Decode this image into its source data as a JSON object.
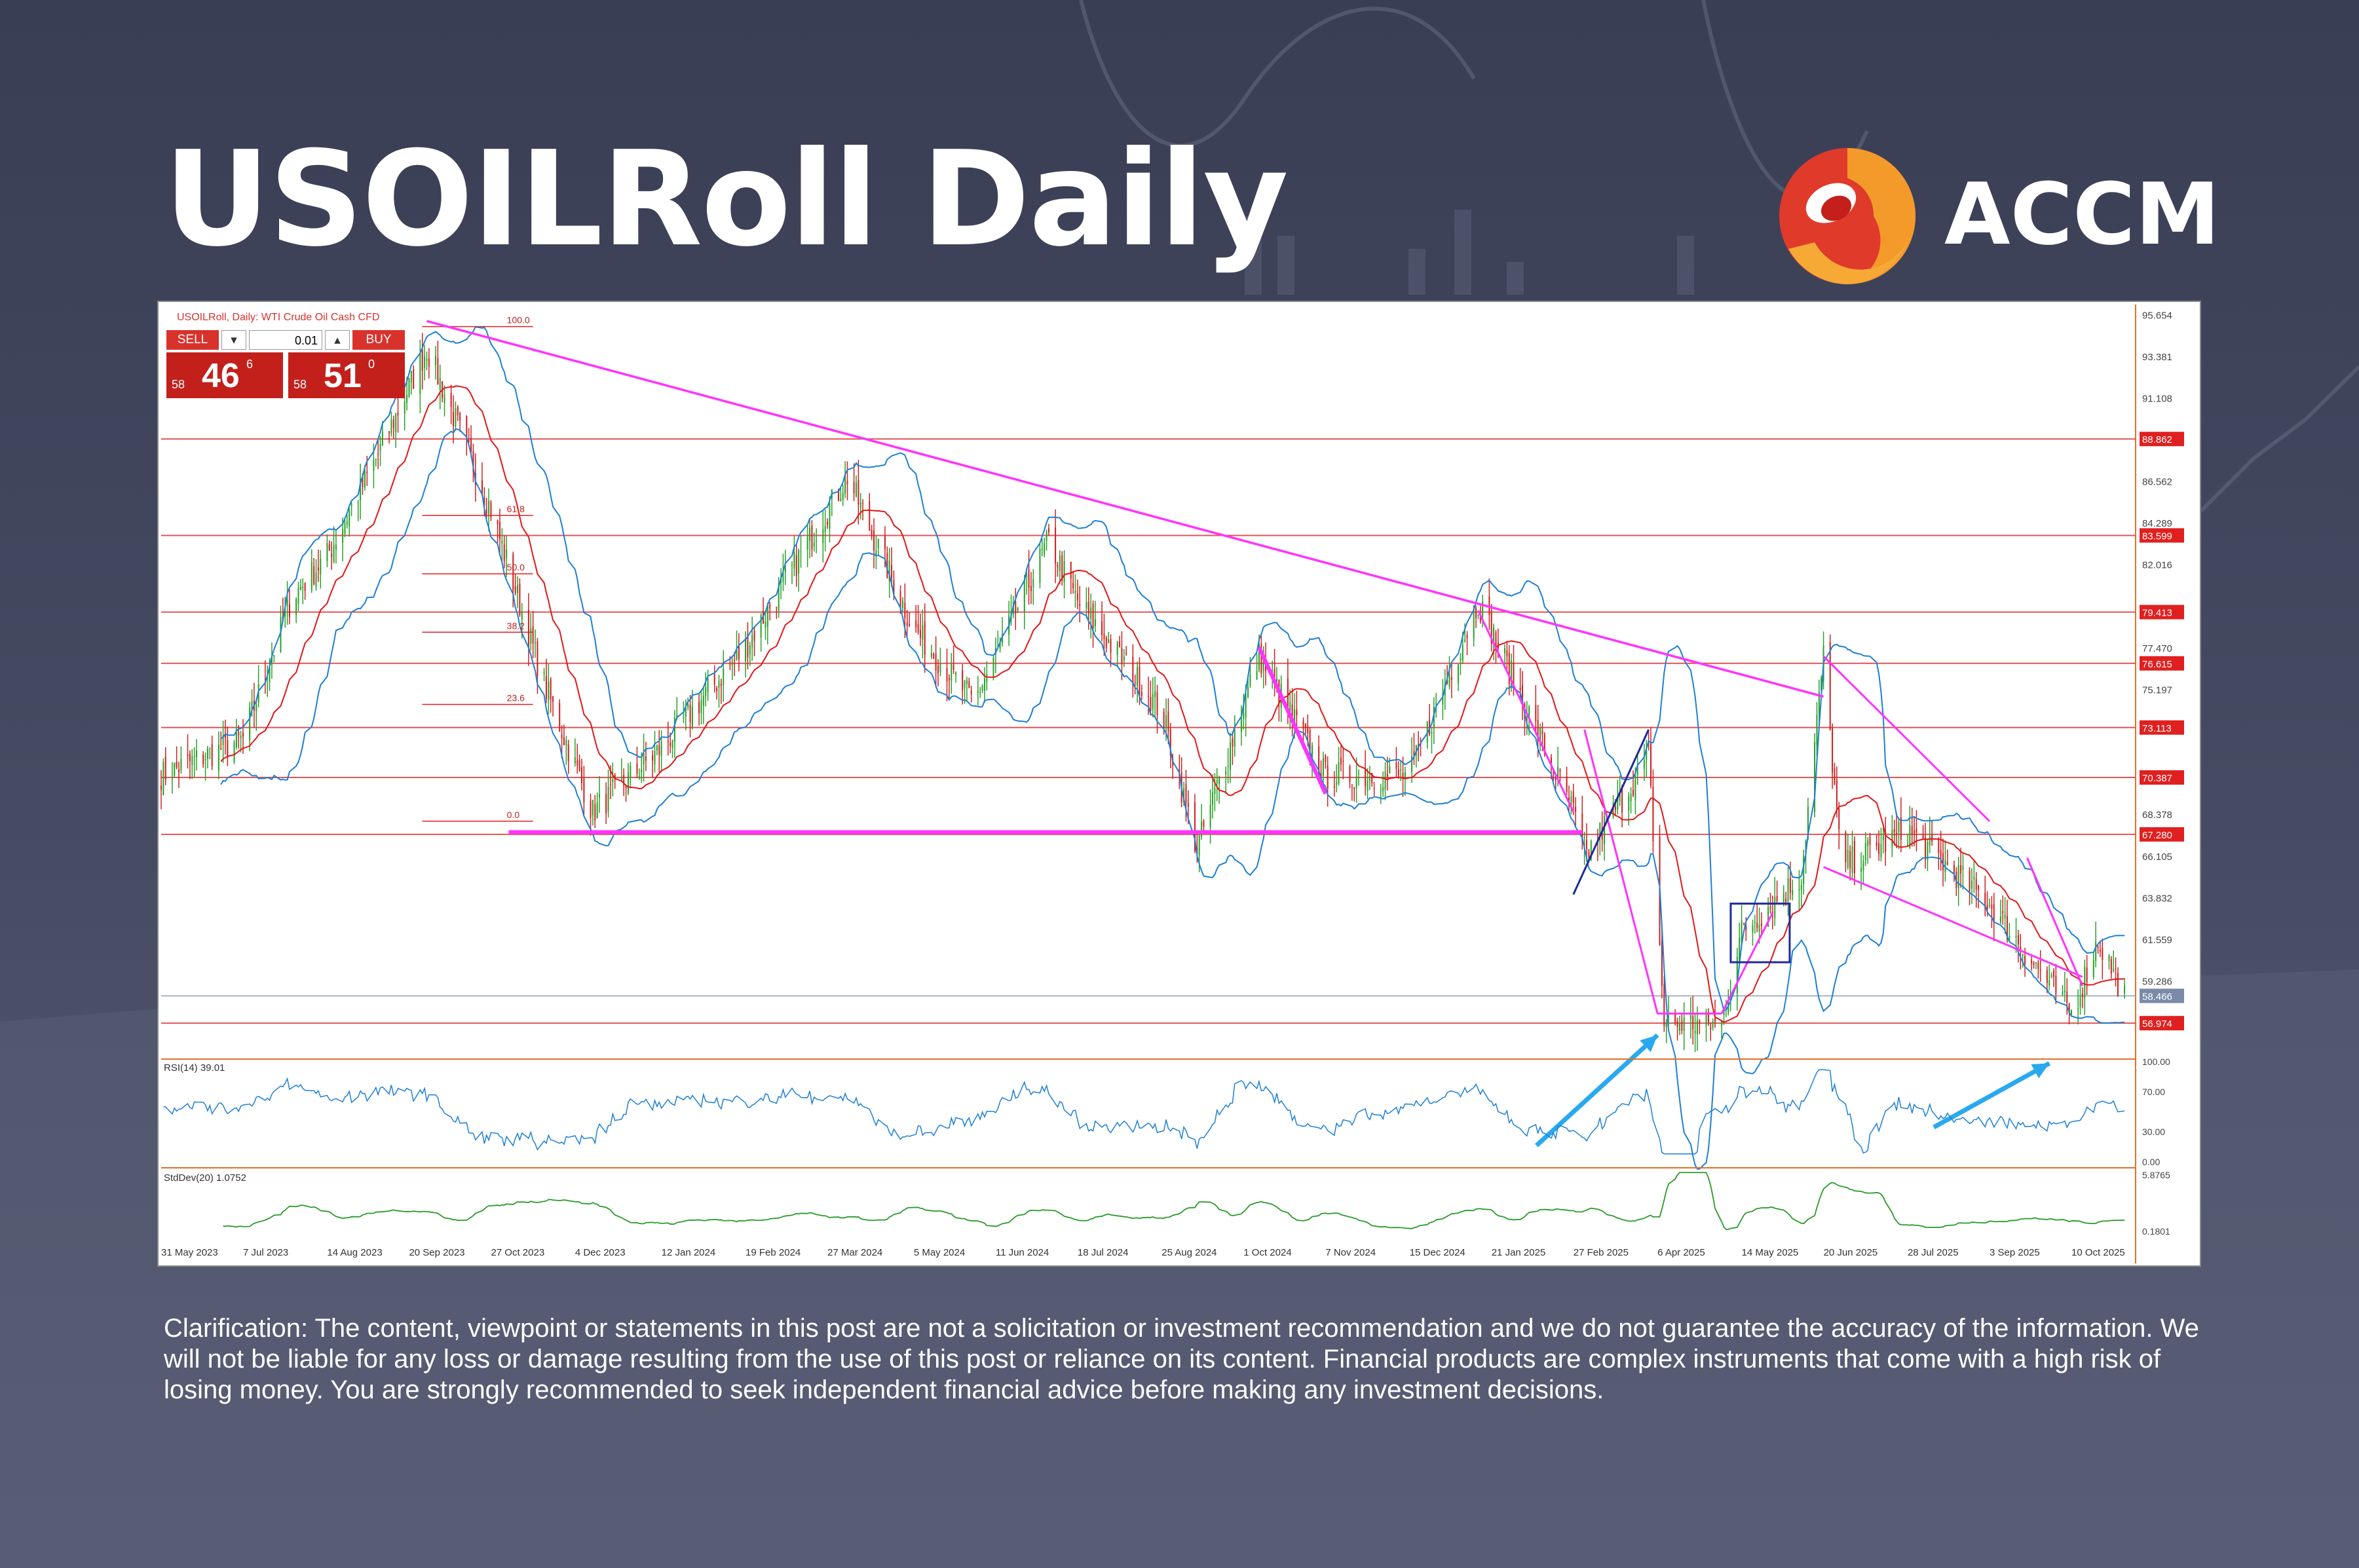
{
  "page": {
    "title": "USOILRoll Daily",
    "brand": "ACCM",
    "disclaimer": "Clarification: The content, viewpoint or statements in this post are not a solicitation or investment recommendation and we do not guarantee the accuracy of the information. We will not be liable for any loss or damage resulting from the use of this post or reliance on its content. Financial products are complex instruments that come with a high risk of losing money. You are strongly recommended to seek independent financial advice before making any investment decisions.",
    "colors": {
      "background": "#3e4259",
      "logo_red": "#e03a2a",
      "logo_orange": "#f39a2b",
      "candle_up": "#2aa12a",
      "candle_down": "#cc2222",
      "trendline": "#ff33ff",
      "bollinger": "#1e7fd6",
      "moving_average": "#e01818",
      "annotation_arrow": "#29a9ef"
    }
  },
  "trade_panel": {
    "sell_label": "SELL",
    "buy_label": "BUY",
    "quantity": "0.01",
    "sell_prefix": "58",
    "sell_main": "46",
    "sell_sup": "6",
    "buy_prefix": "58",
    "buy_main": "51",
    "buy_sup": "0"
  },
  "chart_data": {
    "type": "candlestick",
    "symbol_header": "USOILRoll, Daily: WTI Crude Oil Cash CFD",
    "y_range": [
      55.3,
      96.2
    ],
    "x_labels": [
      "31 May 2023",
      "7 Jul 2023",
      "14 Aug 2023",
      "20 Sep 2023",
      "27 Oct 2023",
      "4 Dec 2023",
      "12 Jan 2024",
      "19 Feb 2024",
      "27 Mar 2024",
      "5 May 2024",
      "11 Jun 2024",
      "18 Jul 2024",
      "25 Aug 2024",
      "1 Oct 2024",
      "7 Nov 2024",
      "15 Dec 2024",
      "21 Jan 2025",
      "27 Feb 2025",
      "6 Apr 2025",
      "14 May 2025",
      "20 Jun 2025",
      "28 Jul 2025",
      "3 Sep 2025",
      "10 Oct 2025"
    ],
    "price_ticks": [
      "95.654",
      "93.381",
      "91.108",
      "88.862",
      "86.562",
      "84.289",
      "83.599",
      "82.016",
      "79.413",
      "77.470",
      "76.615",
      "75.197",
      "73.113",
      "70.387",
      "68.378",
      "67.280",
      "66.105",
      "63.832",
      "61.559",
      "59.286",
      "58.466",
      "56.974"
    ],
    "highlighted_levels": [
      "88.862",
      "83.599",
      "79.413",
      "76.615",
      "73.113",
      "70.387",
      "67.280",
      "56.974"
    ],
    "current_price": "58.466",
    "fibonacci_labels": [
      "100.0",
      "61.8",
      "50.0",
      "38.2",
      "23.6",
      "0.0"
    ],
    "close_path": [
      {
        "d": "31 May 2023",
        "c": 70.5
      },
      {
        "d": "7 Jul 2023",
        "c": 72.5
      },
      {
        "d": "29 Jul 2023",
        "c": 80.2
      },
      {
        "d": "14 Aug 2023",
        "c": 82.5
      },
      {
        "d": "4 Sep 2023",
        "c": 87.5
      },
      {
        "d": "28 Sep 2023",
        "c": 93.8
      },
      {
        "d": "27 Oct 2023",
        "c": 85.0
      },
      {
        "d": "20 Nov 2023",
        "c": 75.5
      },
      {
        "d": "12 Dec 2023",
        "c": 68.5
      },
      {
        "d": "12 Jan 2024",
        "c": 72.0
      },
      {
        "d": "19 Feb 2024",
        "c": 77.5
      },
      {
        "d": "5 Apr 2024",
        "c": 86.8
      },
      {
        "d": "5 May 2024",
        "c": 78.5
      },
      {
        "d": "1 Jun 2024",
        "c": 74.5
      },
      {
        "d": "5 Jul 2024",
        "c": 83.3
      },
      {
        "d": "18 Jul 2024",
        "c": 80.0
      },
      {
        "d": "25 Aug 2024",
        "c": 74.0
      },
      {
        "d": "10 Sep 2024",
        "c": 66.5
      },
      {
        "d": "8 Oct 2024",
        "c": 77.0
      },
      {
        "d": "7 Nov 2024",
        "c": 70.5
      },
      {
        "d": "15 Dec 2024",
        "c": 70.5
      },
      {
        "d": "15 Jan 2025",
        "c": 80.0
      },
      {
        "d": "27 Feb 2025",
        "c": 68.5
      },
      {
        "d": "4 Mar 2025",
        "c": 66.0
      },
      {
        "d": "2 Apr 2025",
        "c": 71.5
      },
      {
        "d": "9 Apr 2025",
        "c": 57.0
      },
      {
        "d": "5 May 2025",
        "c": 56.9
      },
      {
        "d": "14 May 2025",
        "c": 62.0
      },
      {
        "d": "10 Jun 2025",
        "c": 65.0
      },
      {
        "d": "20 Jun 2025",
        "c": 77.0
      },
      {
        "d": "28 Jun 2025",
        "c": 65.5
      },
      {
        "d": "28 Jul 2025",
        "c": 67.5
      },
      {
        "d": "3 Sep 2025",
        "c": 63.5
      },
      {
        "d": "10 Oct 2025",
        "c": 57.5
      },
      {
        "d": "22 Oct 2025",
        "c": 61.5
      },
      {
        "d": "3 Nov 2025",
        "c": 58.5
      }
    ],
    "rsi": {
      "label": "RSI(14) 39.01",
      "ticks": [
        "100.00",
        "70.00",
        "30.00",
        "0.00"
      ]
    },
    "stddev": {
      "label": "StdDev(20) 1.0752",
      "ticks": [
        "5.8765",
        "0.1801"
      ]
    }
  }
}
